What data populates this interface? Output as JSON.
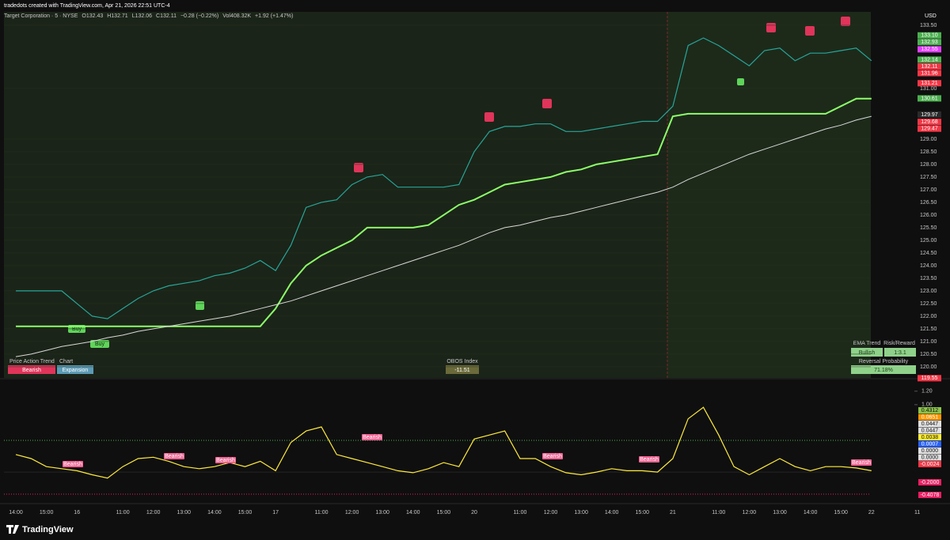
{
  "header": {
    "credit": "tradedots created with TradingView.com, Apr 21, 2026 22:51 UTC-4",
    "legend": [
      {
        "text": "Target Corporation · 5 · NYSE",
        "color": "#d0d0d0"
      },
      {
        "text": "O132.43",
        "color": "#f23645"
      },
      {
        "text": "H132.71",
        "color": "#f23645"
      },
      {
        "text": "L132.06",
        "color": "#f23645"
      },
      {
        "text": "C132.11",
        "color": "#f23645"
      },
      {
        "text": "−0.28 (−0.22%)",
        "color": "#f23645"
      },
      {
        "text": "Vol408.32K",
        "color": "#f23645"
      },
      {
        "text": "+1.92 (+1.47%)",
        "color": "#4caf50"
      }
    ],
    "currency": "USD"
  },
  "chart_data": [
    {
      "type": "line",
      "categories": [
        "14:00",
        null,
        "15:00",
        null,
        "16",
        null,
        null,
        "11:00",
        null,
        "12:00",
        null,
        "13:00",
        null,
        "14:00",
        null,
        "15:00",
        null,
        "17",
        null,
        null,
        "11:00",
        null,
        "12:00",
        null,
        "13:00",
        null,
        "14:00",
        null,
        "15:00",
        null,
        "20",
        null,
        null,
        "11:00",
        null,
        "12:00",
        null,
        "13:00",
        null,
        "14:00",
        null,
        "15:00",
        null,
        "21",
        null,
        null,
        "11:00",
        null,
        "12:00",
        null,
        "13:00",
        null,
        "14:00",
        null,
        "15:00",
        null,
        "22",
        null,
        null,
        "11"
      ],
      "ylim": [
        119.56,
        134.03
      ],
      "yticks": [
        {
          "value": 120,
          "label": "120.00"
        },
        {
          "value": 120.5,
          "label": "120.50"
        },
        {
          "value": 121,
          "label": "121.00"
        },
        {
          "value": 121.5,
          "label": "121.50"
        },
        {
          "value": 122,
          "label": "122.00"
        },
        {
          "value": 122.5,
          "label": "122.50"
        },
        {
          "value": 123,
          "label": "123.00"
        },
        {
          "value": 123.5,
          "label": "123.50"
        },
        {
          "value": 124,
          "label": "124.00"
        },
        {
          "value": 124.5,
          "label": "124.50"
        },
        {
          "value": 125,
          "label": "125.00"
        },
        {
          "value": 125.5,
          "label": "125.50"
        },
        {
          "value": 126,
          "label": "126.00"
        },
        {
          "value": 126.5,
          "label": "126.50"
        },
        {
          "value": 127,
          "label": "127.00"
        },
        {
          "value": 127.5,
          "label": "127.50"
        },
        {
          "value": 128,
          "label": "128.00"
        },
        {
          "value": 128.5,
          "label": "128.50"
        },
        {
          "value": 129,
          "label": "129.00"
        },
        {
          "value": 131,
          "label": "131.00"
        },
        {
          "value": 133.5,
          "label": "133.50"
        }
      ],
      "series": [
        {
          "color": "#26a69a",
          "values": [
            123.0,
            123.0,
            123.0,
            123.0,
            122.5,
            122.0,
            121.9,
            122.3,
            122.7,
            123.0,
            123.2,
            123.3,
            123.4,
            123.6,
            123.7,
            123.9,
            124.2,
            123.8,
            124.8,
            126.3,
            126.5,
            126.6,
            127.2,
            127.5,
            127.6,
            127.1,
            127.1,
            127.1,
            127.1,
            127.2,
            128.5,
            129.3,
            129.5,
            129.5,
            129.6,
            129.6,
            129.3,
            129.3,
            129.4,
            129.5,
            129.6,
            129.7,
            129.7,
            130.3,
            132.7,
            133.0,
            132.7,
            132.3,
            131.9,
            132.5,
            132.6,
            132.1,
            132.4,
            132.4,
            132.5,
            132.6,
            132.1,
            null,
            null,
            null
          ]
        },
        {
          "color": "#8cff6a",
          "values": [
            121.6,
            121.6,
            121.6,
            121.6,
            121.6,
            121.6,
            121.6,
            121.6,
            121.6,
            121.6,
            121.6,
            121.6,
            121.6,
            121.6,
            121.6,
            121.6,
            121.6,
            122.3,
            123.3,
            124.0,
            124.4,
            124.7,
            125.0,
            125.5,
            125.5,
            125.5,
            125.5,
            125.6,
            126.0,
            126.4,
            126.6,
            126.9,
            127.2,
            127.3,
            127.4,
            127.5,
            127.7,
            127.8,
            128.0,
            128.1,
            128.2,
            128.3,
            128.4,
            129.9,
            130.0,
            130.0,
            130.0,
            130.0,
            130.0,
            130.0,
            130.0,
            130.0,
            130.0,
            130.0,
            130.3,
            130.6,
            130.6,
            null,
            null,
            null
          ]
        },
        {
          "color": "#d8d8d8",
          "values": [
            120.4,
            120.5,
            120.65,
            120.8,
            120.9,
            121.0,
            121.15,
            121.25,
            121.4,
            121.5,
            121.6,
            121.7,
            121.8,
            121.9,
            122.0,
            122.15,
            122.3,
            122.45,
            122.6,
            122.8,
            123.0,
            123.2,
            123.4,
            123.6,
            123.8,
            124.0,
            124.2,
            124.4,
            124.6,
            124.8,
            125.05,
            125.3,
            125.5,
            125.6,
            125.75,
            125.9,
            126.0,
            126.15,
            126.3,
            126.45,
            126.6,
            126.75,
            126.9,
            127.1,
            127.4,
            127.65,
            127.9,
            128.15,
            128.4,
            128.6,
            128.8,
            129.0,
            129.2,
            129.4,
            129.55,
            129.75,
            129.9,
            null,
            null,
            null
          ]
        }
      ],
      "price_labels": [
        {
          "value": 133.1,
          "label": "133.10",
          "color": "#4caf50"
        },
        {
          "value": 132.93,
          "label": "132.93",
          "color": "#4caf50"
        },
        {
          "value": 132.55,
          "label": "132.55",
          "color": "#e040fb"
        },
        {
          "value": 132.14,
          "label": "132.14",
          "color": "#4caf50"
        },
        {
          "value": 132.11,
          "label": "132.11",
          "color": "#f23645"
        },
        {
          "value": 131.96,
          "label": "131.96",
          "color": "#f23645"
        },
        {
          "value": 131.21,
          "label": "131.21",
          "color": "#f23645"
        },
        {
          "value": 130.61,
          "label": "130.61",
          "color": "#4caf50"
        },
        {
          "value": 129.97,
          "label": "129.97",
          "color": "#2b2b2b"
        },
        {
          "value": 129.68,
          "label": "129.68",
          "color": "#f23645"
        },
        {
          "value": 129.47,
          "label": "129.47",
          "color": "#f23645"
        },
        {
          "value": 119.55,
          "label": "119.55",
          "color": "#f23645"
        }
      ],
      "signals": [
        "Buy",
        "Buy"
      ],
      "tables": {
        "trend": {
          "headers": [
            "Price Action Trend",
            "Chart"
          ],
          "cells": [
            "Bearish",
            "Expansion"
          ]
        },
        "obos": {
          "header": "OBOS Index",
          "cell": "-11.51"
        },
        "ema": {
          "headers": [
            "EMA Trend",
            "Risk/Reward"
          ],
          "cells": [
            "Bullish",
            "1:3.1"
          ],
          "subheader": "Reversal Probability",
          "probability": "71.18%"
        }
      }
    },
    {
      "type": "line",
      "ylim": [
        -0.41,
        1.35
      ],
      "yticks": [
        {
          "value": 1.2,
          "label": "1.20"
        },
        {
          "value": 1,
          "label": "1.00"
        }
      ],
      "series": [
        {
          "color": "#ffeb3b",
          "values": [
            0.26,
            0.2,
            0.08,
            0.05,
            0.02,
            -0.04,
            -0.09,
            0.08,
            0.2,
            0.22,
            0.16,
            0.08,
            0.05,
            0.08,
            0.14,
            0.08,
            0.16,
            0.02,
            0.44,
            0.61,
            0.67,
            0.26,
            0.2,
            0.14,
            0.08,
            0.02,
            -0.01,
            0.05,
            0.14,
            0.08,
            0.49,
            0.55,
            0.61,
            0.2,
            0.2,
            0.08,
            -0.01,
            -0.04,
            0,
            0.05,
            0.02,
            0.02,
            0,
            0.2,
            0.79,
            0.96,
            0.55,
            0.08,
            -0.04,
            0.08,
            0.2,
            0.08,
            0.02,
            0.08,
            0.08,
            0.06,
            0.02,
            null,
            null,
            null
          ]
        }
      ],
      "annotations": [
        "Bearish",
        "Bearish",
        "Bearish",
        "Bearish",
        "Bearish",
        "Bearish",
        "Bearish"
      ],
      "badges": [
        {
          "label": "0.4312",
          "color": "#8bc34a"
        },
        {
          "label": "0.0651",
          "color": "#ff9800"
        },
        {
          "label": "0.0447",
          "color": "#e0e0e0"
        },
        {
          "label": "0.0447",
          "color": "#e0e0e0"
        },
        {
          "label": "0.0038",
          "color": "#ffeb3b"
        },
        {
          "label": "0.0007",
          "color": "#2962ff"
        },
        {
          "label": "0.0000",
          "color": "#e0e0e0"
        },
        {
          "label": "0.0000",
          "color": "#e0e0e0"
        },
        {
          "label": "-0.0024",
          "color": "#f23645"
        },
        {
          "label": "-0.2000",
          "color": "#e91e63"
        },
        {
          "label": "-0.4078",
          "color": "#e91e63"
        }
      ]
    }
  ],
  "footer": {
    "brand": "TradingView"
  }
}
